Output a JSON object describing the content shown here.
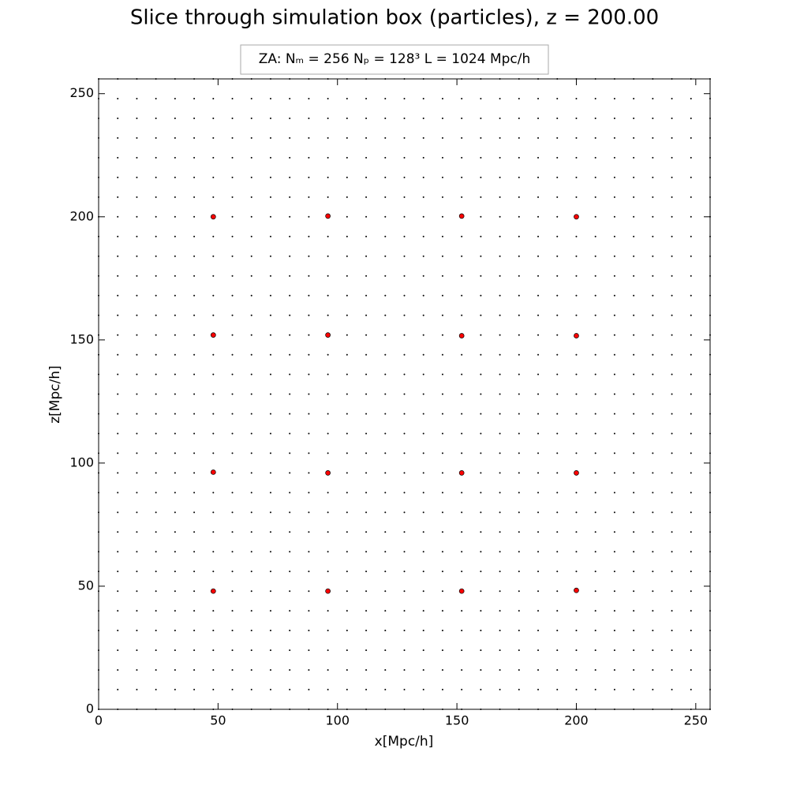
{
  "chart_data": {
    "type": "scatter",
    "title": "Slice through simulation box (particles), z = 200.00",
    "legend_text": "ZA:  Nₘ = 256   Nₚ = 128³   L = 1024 Mpc/h",
    "x_label": "x[Mpc/h]",
    "y_label": "z[Mpc/h]",
    "xlim": [
      0,
      256
    ],
    "ylim": [
      0,
      256
    ],
    "xticks": [
      0,
      50,
      100,
      150,
      200,
      250
    ],
    "yticks": [
      0,
      50,
      100,
      150,
      200,
      250
    ],
    "lattice_positions": [
      0,
      8,
      16,
      24,
      32,
      40,
      48,
      56,
      64,
      72,
      80,
      88,
      96,
      104,
      112,
      120,
      128,
      136,
      144,
      152,
      160,
      168,
      176,
      184,
      192,
      200,
      208,
      216,
      224,
      232,
      240,
      248,
      256
    ],
    "lattice_color": "#000000",
    "highlight": {
      "color": "#ff0000",
      "x": [
        48,
        96,
        152,
        200,
        48,
        96,
        152,
        200,
        48,
        96,
        152,
        200,
        48,
        96,
        152,
        200
      ],
      "y": [
        200,
        200.3,
        200.3,
        200,
        152,
        152,
        151.7,
        151.7,
        96.3,
        96,
        96,
        96,
        48,
        48,
        48,
        48.3
      ]
    }
  }
}
